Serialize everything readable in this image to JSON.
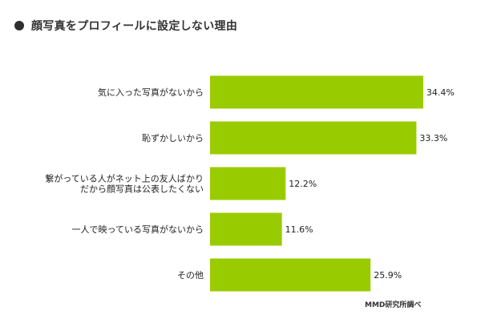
{
  "title": "顔写真をプロフィールに設定しない理由",
  "source": "MMD研究所調べ",
  "colors": {
    "bar": "#99cc00",
    "bullet": "#2e2e2e"
  },
  "chart_data": {
    "type": "bar",
    "orientation": "horizontal",
    "categories": [
      [
        "気に入った写真がないから"
      ],
      [
        "恥ずかしいから"
      ],
      [
        "繋がっている人がネット上の友人ばかり",
        "だから顔写真は公表したくない"
      ],
      [
        "一人で映っている写真がないから"
      ],
      [
        "その他"
      ]
    ],
    "values": [
      34.4,
      33.3,
      12.2,
      11.6,
      25.9
    ],
    "value_labels": [
      "34.4%",
      "33.3%",
      "12.2%",
      "11.6%",
      "25.9%"
    ],
    "unit": "%",
    "xlim": [
      0,
      40
    ],
    "grid": false,
    "legend": "none"
  }
}
